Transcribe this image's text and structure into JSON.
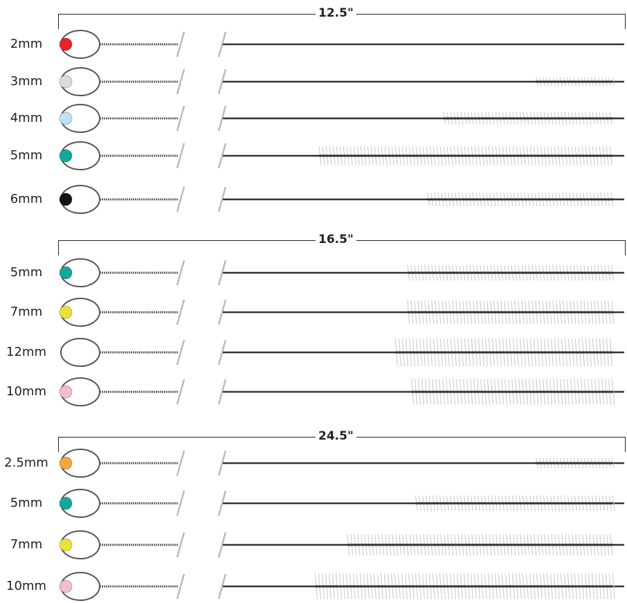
{
  "groups": [
    {
      "length": "12.5\"",
      "items": [
        {
          "size": "2mm",
          "bead": "#e8232f",
          "bristle": 0.0,
          "start": 0.93
        },
        {
          "size": "3mm",
          "bead": "#dcdcdc",
          "bristle": 0.15,
          "start": 0.78
        },
        {
          "size": "4mm",
          "bead": "#bfe0f2",
          "bristle": 0.3,
          "start": 0.55
        },
        {
          "size": "5mm",
          "bead": "#13a89a",
          "bristle": 0.6,
          "start": 0.24
        },
        {
          "size": "6mm",
          "bead": "#111111",
          "bristle": 0.35,
          "start": 0.51
        }
      ]
    },
    {
      "length": "16.5\"",
      "items": [
        {
          "size": "5mm",
          "bead": "#13a89a",
          "bristle": 0.45,
          "start": 0.46
        },
        {
          "size": "7mm",
          "bead": "#e8e23a",
          "bristle": 0.8,
          "start": 0.46
        },
        {
          "size": "12mm",
          "bead": "none",
          "bristle": 1.0,
          "start": 0.43
        },
        {
          "size": "10mm",
          "bead": "#f2bcd0",
          "bristle": 0.9,
          "start": 0.47
        }
      ]
    },
    {
      "length": "24.5\"",
      "items": [
        {
          "size": "2.5mm",
          "bead": "#f6a63a",
          "bristle": 0.2,
          "start": 0.78
        },
        {
          "size": "5mm",
          "bead": "#13a89a",
          "bristle": 0.45,
          "start": 0.48
        },
        {
          "size": "7mm",
          "bead": "#e8e23a",
          "bristle": 0.7,
          "start": 0.31
        },
        {
          "size": "10mm",
          "bead": "#f2bcd0",
          "bristle": 0.9,
          "start": 0.23
        }
      ]
    }
  ]
}
